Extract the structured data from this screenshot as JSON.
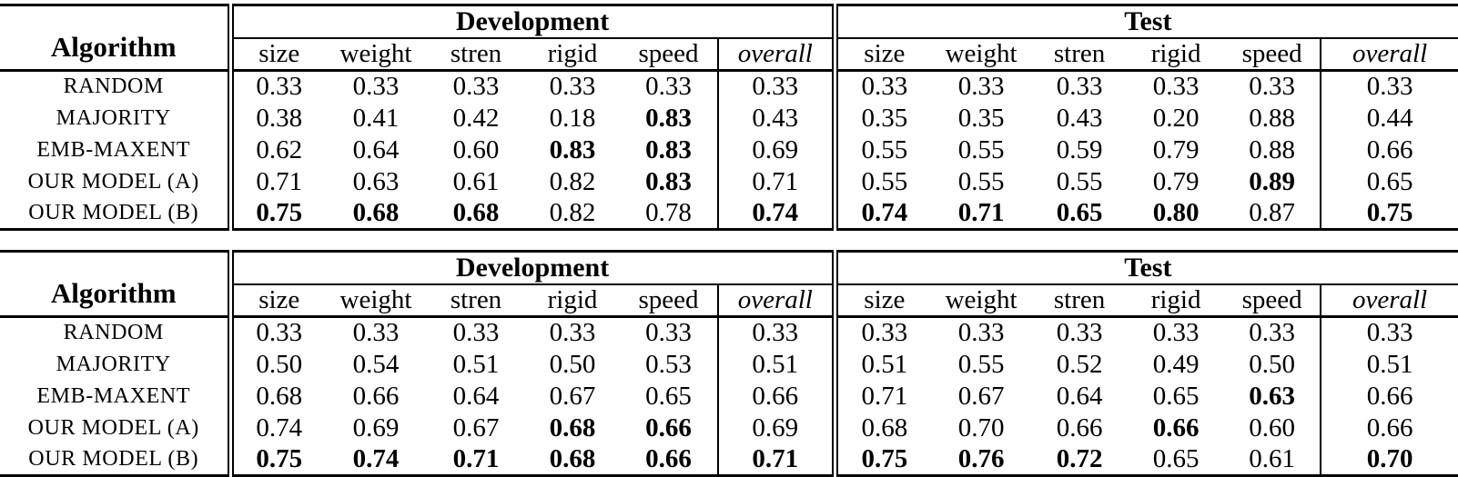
{
  "page": {
    "background": "#ffffff",
    "text_color": "#000000",
    "rule_color": "#000000"
  },
  "tables": [
    {
      "corner_label": "Algorithm",
      "group_headers": {
        "development": "Development",
        "test": "Test"
      },
      "metric_headers": [
        "size",
        "weight",
        "stren",
        "rigid",
        "speed",
        "overall"
      ],
      "rows": [
        {
          "label": "RANDOM",
          "dev": [
            {
              "v": "0.33",
              "b": false
            },
            {
              "v": "0.33",
              "b": false
            },
            {
              "v": "0.33",
              "b": false
            },
            {
              "v": "0.33",
              "b": false
            },
            {
              "v": "0.33",
              "b": false
            },
            {
              "v": "0.33",
              "b": false
            }
          ],
          "test": [
            {
              "v": "0.33",
              "b": false
            },
            {
              "v": "0.33",
              "b": false
            },
            {
              "v": "0.33",
              "b": false
            },
            {
              "v": "0.33",
              "b": false
            },
            {
              "v": "0.33",
              "b": false
            },
            {
              "v": "0.33",
              "b": false
            }
          ]
        },
        {
          "label": "MAJORITY",
          "dev": [
            {
              "v": "0.38",
              "b": false
            },
            {
              "v": "0.41",
              "b": false
            },
            {
              "v": "0.42",
              "b": false
            },
            {
              "v": "0.18",
              "b": false
            },
            {
              "v": "0.83",
              "b": true
            },
            {
              "v": "0.43",
              "b": false
            }
          ],
          "test": [
            {
              "v": "0.35",
              "b": false
            },
            {
              "v": "0.35",
              "b": false
            },
            {
              "v": "0.43",
              "b": false
            },
            {
              "v": "0.20",
              "b": false
            },
            {
              "v": "0.88",
              "b": false
            },
            {
              "v": "0.44",
              "b": false
            }
          ]
        },
        {
          "label": "EMB-MAXENT",
          "dev": [
            {
              "v": "0.62",
              "b": false
            },
            {
              "v": "0.64",
              "b": false
            },
            {
              "v": "0.60",
              "b": false
            },
            {
              "v": "0.83",
              "b": true
            },
            {
              "v": "0.83",
              "b": true
            },
            {
              "v": "0.69",
              "b": false
            }
          ],
          "test": [
            {
              "v": "0.55",
              "b": false
            },
            {
              "v": "0.55",
              "b": false
            },
            {
              "v": "0.59",
              "b": false
            },
            {
              "v": "0.79",
              "b": false
            },
            {
              "v": "0.88",
              "b": false
            },
            {
              "v": "0.66",
              "b": false
            }
          ]
        },
        {
          "label": "OUR MODEL (A)",
          "dev": [
            {
              "v": "0.71",
              "b": false
            },
            {
              "v": "0.63",
              "b": false
            },
            {
              "v": "0.61",
              "b": false
            },
            {
              "v": "0.82",
              "b": false
            },
            {
              "v": "0.83",
              "b": true
            },
            {
              "v": "0.71",
              "b": false
            }
          ],
          "test": [
            {
              "v": "0.55",
              "b": false
            },
            {
              "v": "0.55",
              "b": false
            },
            {
              "v": "0.55",
              "b": false
            },
            {
              "v": "0.79",
              "b": false
            },
            {
              "v": "0.89",
              "b": true
            },
            {
              "v": "0.65",
              "b": false
            }
          ]
        },
        {
          "label": "OUR MODEL (B)",
          "dev": [
            {
              "v": "0.75",
              "b": true
            },
            {
              "v": "0.68",
              "b": true
            },
            {
              "v": "0.68",
              "b": true
            },
            {
              "v": "0.82",
              "b": false
            },
            {
              "v": "0.78",
              "b": false
            },
            {
              "v": "0.74",
              "b": true
            }
          ],
          "test": [
            {
              "v": "0.74",
              "b": true
            },
            {
              "v": "0.71",
              "b": true
            },
            {
              "v": "0.65",
              "b": true
            },
            {
              "v": "0.80",
              "b": true
            },
            {
              "v": "0.87",
              "b": false
            },
            {
              "v": "0.75",
              "b": true
            }
          ]
        }
      ]
    },
    {
      "corner_label": "Algorithm",
      "group_headers": {
        "development": "Development",
        "test": "Test"
      },
      "metric_headers": [
        "size",
        "weight",
        "stren",
        "rigid",
        "speed",
        "overall"
      ],
      "rows": [
        {
          "label": "RANDOM",
          "dev": [
            {
              "v": "0.33",
              "b": false
            },
            {
              "v": "0.33",
              "b": false
            },
            {
              "v": "0.33",
              "b": false
            },
            {
              "v": "0.33",
              "b": false
            },
            {
              "v": "0.33",
              "b": false
            },
            {
              "v": "0.33",
              "b": false
            }
          ],
          "test": [
            {
              "v": "0.33",
              "b": false
            },
            {
              "v": "0.33",
              "b": false
            },
            {
              "v": "0.33",
              "b": false
            },
            {
              "v": "0.33",
              "b": false
            },
            {
              "v": "0.33",
              "b": false
            },
            {
              "v": "0.33",
              "b": false
            }
          ]
        },
        {
          "label": "MAJORITY",
          "dev": [
            {
              "v": "0.50",
              "b": false
            },
            {
              "v": "0.54",
              "b": false
            },
            {
              "v": "0.51",
              "b": false
            },
            {
              "v": "0.50",
              "b": false
            },
            {
              "v": "0.53",
              "b": false
            },
            {
              "v": "0.51",
              "b": false
            }
          ],
          "test": [
            {
              "v": "0.51",
              "b": false
            },
            {
              "v": "0.55",
              "b": false
            },
            {
              "v": "0.52",
              "b": false
            },
            {
              "v": "0.49",
              "b": false
            },
            {
              "v": "0.50",
              "b": false
            },
            {
              "v": "0.51",
              "b": false
            }
          ]
        },
        {
          "label": "EMB-MAXENT",
          "dev": [
            {
              "v": "0.68",
              "b": false
            },
            {
              "v": "0.66",
              "b": false
            },
            {
              "v": "0.64",
              "b": false
            },
            {
              "v": "0.67",
              "b": false
            },
            {
              "v": "0.65",
              "b": false
            },
            {
              "v": "0.66",
              "b": false
            }
          ],
          "test": [
            {
              "v": "0.71",
              "b": false
            },
            {
              "v": "0.67",
              "b": false
            },
            {
              "v": "0.64",
              "b": false
            },
            {
              "v": "0.65",
              "b": false
            },
            {
              "v": "0.63",
              "b": true
            },
            {
              "v": "0.66",
              "b": false
            }
          ]
        },
        {
          "label": "OUR MODEL (A)",
          "dev": [
            {
              "v": "0.74",
              "b": false
            },
            {
              "v": "0.69",
              "b": false
            },
            {
              "v": "0.67",
              "b": false
            },
            {
              "v": "0.68",
              "b": true
            },
            {
              "v": "0.66",
              "b": true
            },
            {
              "v": "0.69",
              "b": false
            }
          ],
          "test": [
            {
              "v": "0.68",
              "b": false
            },
            {
              "v": "0.70",
              "b": false
            },
            {
              "v": "0.66",
              "b": false
            },
            {
              "v": "0.66",
              "b": true
            },
            {
              "v": "0.60",
              "b": false
            },
            {
              "v": "0.66",
              "b": false
            }
          ]
        },
        {
          "label": "OUR MODEL (B)",
          "dev": [
            {
              "v": "0.75",
              "b": true
            },
            {
              "v": "0.74",
              "b": true
            },
            {
              "v": "0.71",
              "b": true
            },
            {
              "v": "0.68",
              "b": true
            },
            {
              "v": "0.66",
              "b": true
            },
            {
              "v": "0.71",
              "b": true
            }
          ],
          "test": [
            {
              "v": "0.75",
              "b": true
            },
            {
              "v": "0.76",
              "b": true
            },
            {
              "v": "0.72",
              "b": true
            },
            {
              "v": "0.65",
              "b": false
            },
            {
              "v": "0.61",
              "b": false
            },
            {
              "v": "0.70",
              "b": true
            }
          ]
        }
      ]
    }
  ]
}
